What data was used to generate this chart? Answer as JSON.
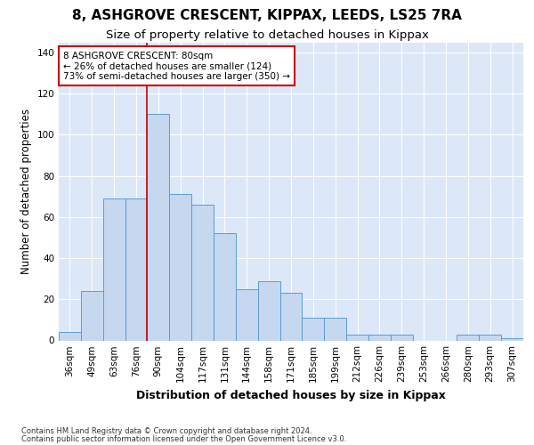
{
  "title1": "8, ASHGROVE CRESCENT, KIPPAX, LEEDS, LS25 7RA",
  "title2": "Size of property relative to detached houses in Kippax",
  "xlabel": "Distribution of detached houses by size in Kippax",
  "ylabel": "Number of detached properties",
  "categories": [
    "36sqm",
    "49sqm",
    "63sqm",
    "76sqm",
    "90sqm",
    "104sqm",
    "117sqm",
    "131sqm",
    "144sqm",
    "158sqm",
    "171sqm",
    "185sqm",
    "199sqm",
    "212sqm",
    "226sqm",
    "239sqm",
    "253sqm",
    "266sqm",
    "280sqm",
    "293sqm",
    "307sqm"
  ],
  "values": [
    4,
    24,
    69,
    69,
    110,
    71,
    66,
    52,
    25,
    29,
    23,
    11,
    11,
    3,
    3,
    3,
    0,
    0,
    3,
    3,
    1
  ],
  "bar_color": "#c5d8f0",
  "bar_edge_color": "#5b9bd5",
  "vline_x": 3.5,
  "vline_color": "#cc0000",
  "annotation_text": "8 ASHGROVE CRESCENT: 80sqm\n← 26% of detached houses are smaller (124)\n73% of semi-detached houses are larger (350) →",
  "annotation_box_color": "#ffffff",
  "annotation_box_edge": "#cc0000",
  "ylim": [
    0,
    145
  ],
  "yticks": [
    0,
    20,
    40,
    60,
    80,
    100,
    120,
    140
  ],
  "bg_color": "#dce8f8",
  "footer1": "Contains HM Land Registry data © Crown copyright and database right 2024.",
  "footer2": "Contains public sector information licensed under the Open Government Licence v3.0.",
  "title1_fontsize": 11,
  "title2_fontsize": 9.5,
  "tick_fontsize": 7.5,
  "ylabel_fontsize": 8.5,
  "xlabel_fontsize": 9
}
